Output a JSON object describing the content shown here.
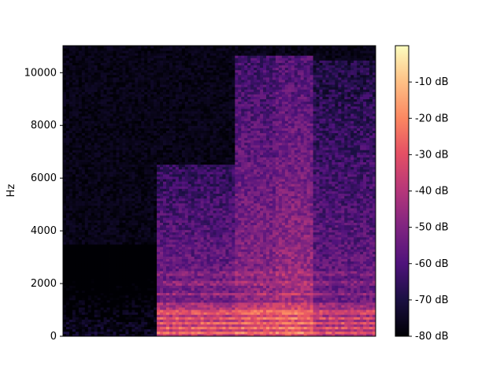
{
  "chart_data": {
    "type": "heatmap",
    "title": "",
    "xlabel": "",
    "ylabel": "Hz",
    "ylim": [
      0,
      11025
    ],
    "y_ticks": [
      0,
      2000,
      4000,
      6000,
      8000,
      10000
    ],
    "x_ticks": [],
    "grid": false,
    "colormap": "magma",
    "colorbar": {
      "range_db": [
        -80,
        0
      ],
      "ticks": [
        -80,
        -70,
        -60,
        -50,
        -40,
        -30,
        -20,
        -10
      ],
      "tick_labels": [
        "-80 dB",
        "-70 dB",
        "-60 dB",
        "-50 dB",
        "-40 dB",
        "-30 dB",
        "-20 dB",
        "-10 dB"
      ]
    },
    "segments": [
      {
        "t0": 0.0,
        "t1": 0.3,
        "level_db": -75,
        "max_freq_hz": 3500
      },
      {
        "t0": 0.3,
        "t1": 0.55,
        "level_db": -48,
        "max_freq_hz": 6500
      },
      {
        "t0": 0.55,
        "t1": 0.68,
        "level_db": -45,
        "max_freq_hz": 10700
      },
      {
        "t0": 0.68,
        "t1": 0.8,
        "level_db": -42,
        "max_freq_hz": 10700
      },
      {
        "t0": 0.8,
        "t1": 1.0,
        "level_db": -52,
        "max_freq_hz": 10500
      }
    ],
    "harmonic_bands_hz": [
      150,
      300,
      500,
      700,
      900,
      1200,
      1600,
      2000,
      2400
    ]
  }
}
